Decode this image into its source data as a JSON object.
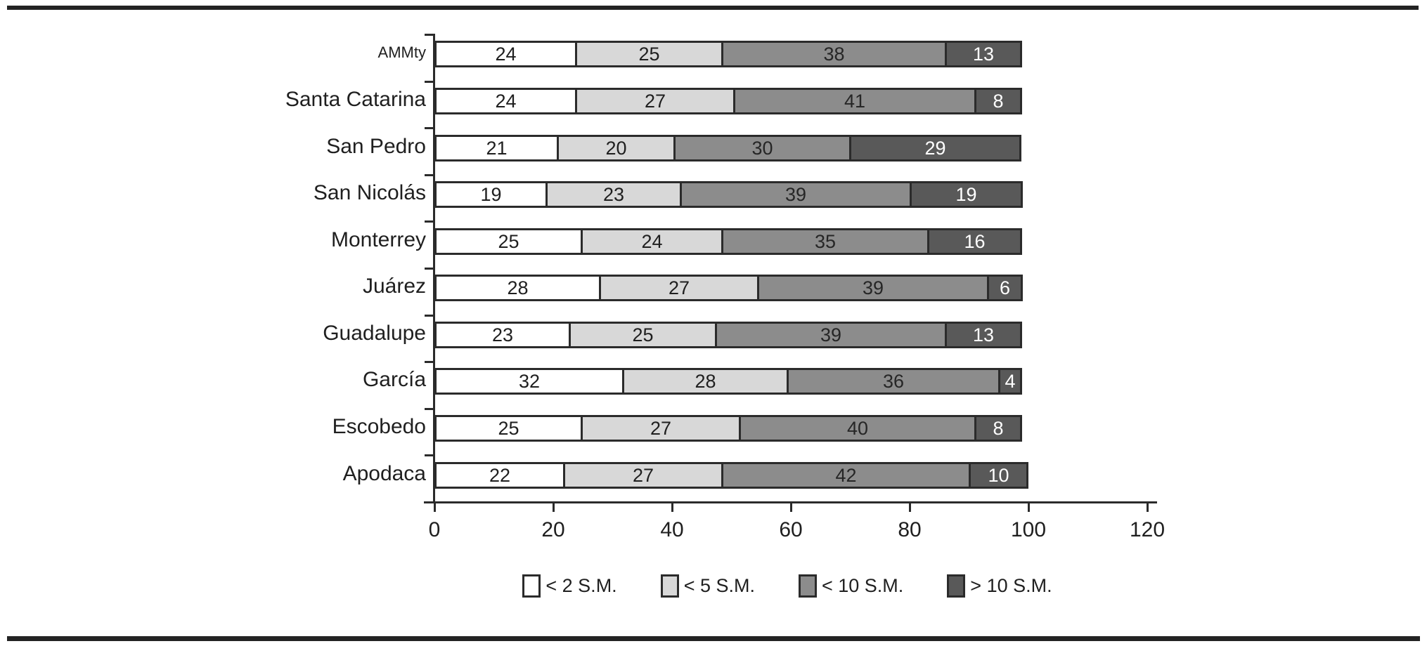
{
  "figure": {
    "top_rule_color": "#232323",
    "bottom_rule_color": "#232323",
    "background": "#ffffff"
  },
  "chart_data": {
    "type": "bar",
    "orientation": "horizontal",
    "stacked": true,
    "title": "",
    "xlabel": "",
    "ylabel": "",
    "categories": [
      "AMMty",
      "Santa Catarina",
      "San Pedro",
      "San Nicolás",
      "Monterrey",
      "Juárez",
      "Guadalupe",
      "García",
      "Escobedo",
      "Apodaca"
    ],
    "series": [
      {
        "name": "< 2 S.M.",
        "color": "#ffffff",
        "label_color": "#1f1f1f",
        "values": [
          24,
          24,
          21,
          19,
          25,
          28,
          23,
          32,
          25,
          22
        ]
      },
      {
        "name": "< 5 S.M.",
        "color": "#d8d8d8",
        "label_color": "#1f1f1f",
        "values": [
          25,
          27,
          20,
          23,
          24,
          27,
          25,
          28,
          27,
          27
        ]
      },
      {
        "name": "< 10 S.M.",
        "color": "#8c8c8c",
        "label_color": "#262626",
        "values": [
          38,
          41,
          30,
          39,
          35,
          39,
          39,
          36,
          40,
          42
        ]
      },
      {
        "name": "> 10 S.M.",
        "color": "#595959",
        "label_color": "#ffffff",
        "values": [
          13,
          8,
          29,
          19,
          16,
          6,
          13,
          4,
          8,
          10
        ]
      }
    ],
    "bar_value_labels": true,
    "xlim": [
      0,
      120
    ],
    "x_ticks": [
      "0",
      "20",
      "40",
      "60",
      "80",
      "100",
      "120"
    ],
    "grid": false,
    "legend_position": "bottom"
  }
}
